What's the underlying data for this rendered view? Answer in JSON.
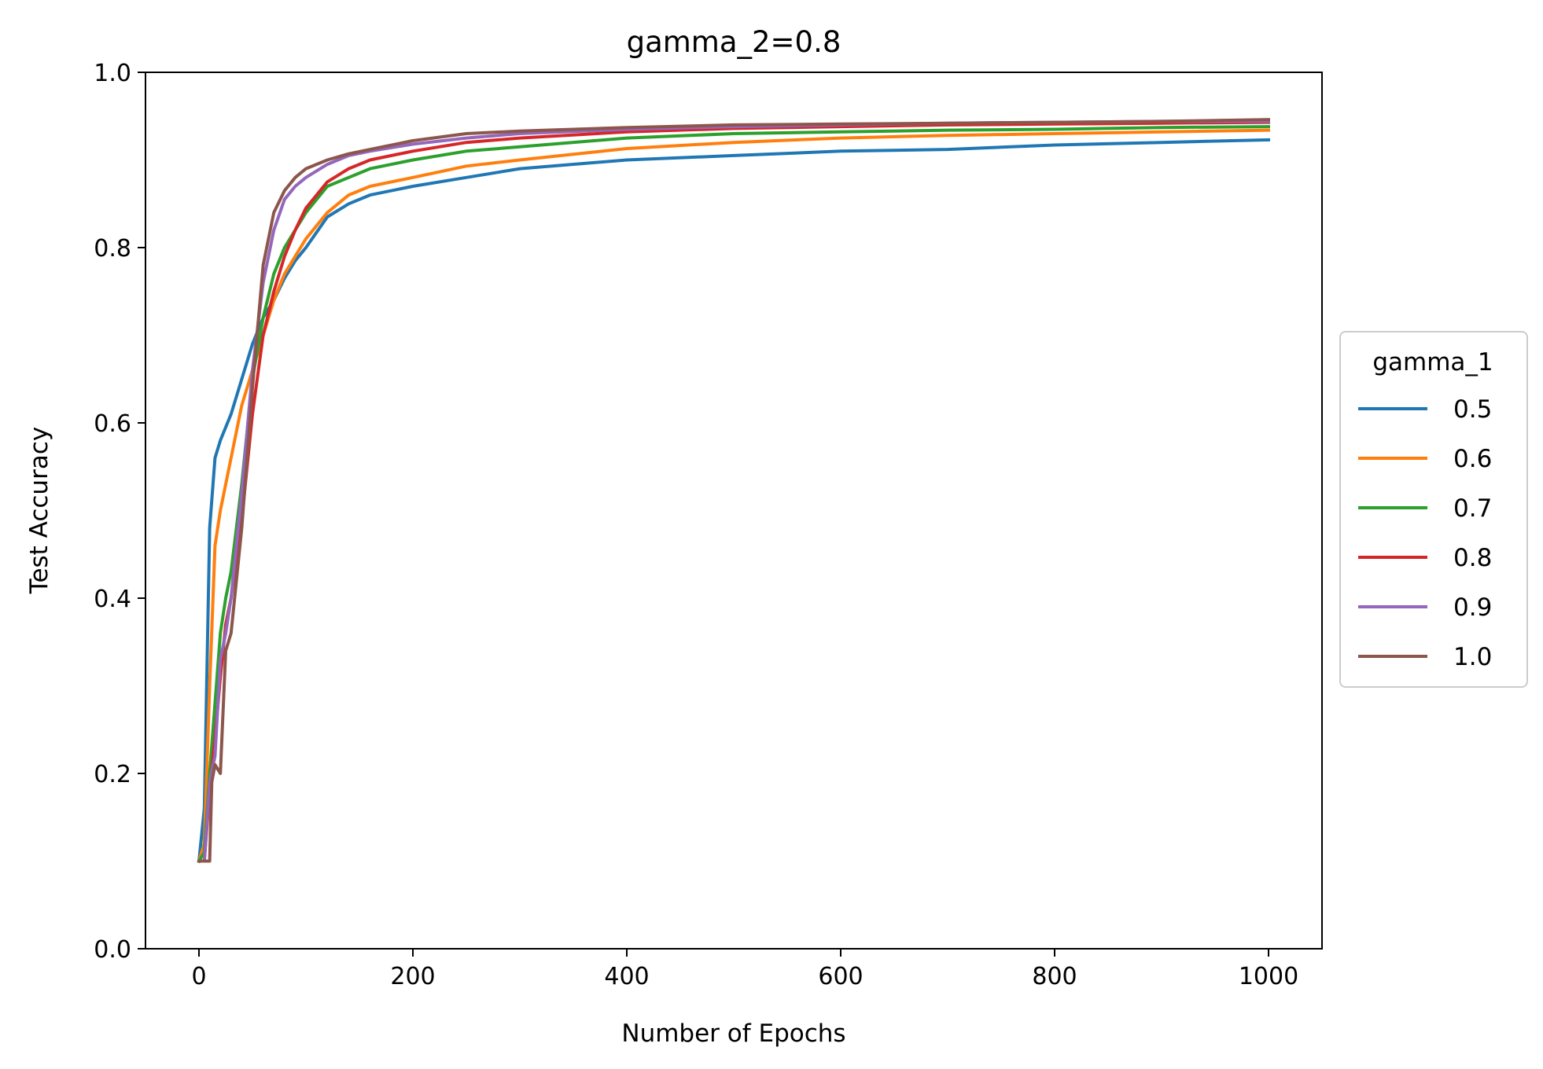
{
  "chart_data": {
    "type": "line",
    "title": "gamma_2=0.8",
    "xlabel": "Number of Epochs",
    "ylabel": "Test Accuracy",
    "xlim": [
      -50,
      1050
    ],
    "ylim": [
      0.0,
      1.0
    ],
    "xticks": [
      0,
      200,
      400,
      600,
      800,
      1000
    ],
    "xtick_labels": [
      "0",
      "200",
      "400",
      "600",
      "800",
      "1000"
    ],
    "yticks": [
      0.0,
      0.2,
      0.4,
      0.6,
      0.8,
      1.0
    ],
    "ytick_labels": [
      "0.0",
      "0.2",
      "0.4",
      "0.6",
      "0.8",
      "1.0"
    ],
    "grid": false,
    "legend": {
      "title": "gamma_1",
      "placement": "center-right outside"
    },
    "series": [
      {
        "name": "0.5",
        "color": "#1f77b4",
        "x": [
          0,
          5,
          10,
          15,
          20,
          30,
          40,
          50,
          60,
          70,
          80,
          90,
          100,
          120,
          140,
          160,
          200,
          250,
          300,
          400,
          500,
          600,
          700,
          800,
          900,
          1000
        ],
        "y": [
          0.1,
          0.16,
          0.48,
          0.56,
          0.58,
          0.61,
          0.65,
          0.69,
          0.72,
          0.74,
          0.765,
          0.785,
          0.8,
          0.835,
          0.85,
          0.86,
          0.87,
          0.88,
          0.89,
          0.9,
          0.905,
          0.91,
          0.912,
          0.917,
          0.92,
          0.923
        ]
      },
      {
        "name": "0.6",
        "color": "#ff7f0e",
        "x": [
          0,
          5,
          10,
          15,
          20,
          30,
          40,
          50,
          60,
          70,
          80,
          90,
          100,
          120,
          140,
          160,
          200,
          250,
          300,
          400,
          500,
          600,
          700,
          800,
          900,
          1000
        ],
        "y": [
          0.1,
          0.12,
          0.3,
          0.46,
          0.5,
          0.56,
          0.62,
          0.66,
          0.7,
          0.74,
          0.77,
          0.79,
          0.81,
          0.84,
          0.86,
          0.87,
          0.88,
          0.893,
          0.9,
          0.913,
          0.92,
          0.925,
          0.928,
          0.93,
          0.932,
          0.934
        ]
      },
      {
        "name": "0.7",
        "color": "#2ca02c",
        "x": [
          0,
          5,
          10,
          15,
          20,
          25,
          30,
          40,
          50,
          60,
          70,
          80,
          90,
          100,
          120,
          140,
          160,
          200,
          250,
          300,
          400,
          500,
          600,
          700,
          800,
          900,
          1000
        ],
        "y": [
          0.1,
          0.11,
          0.2,
          0.28,
          0.36,
          0.4,
          0.43,
          0.53,
          0.65,
          0.72,
          0.77,
          0.8,
          0.82,
          0.84,
          0.87,
          0.88,
          0.89,
          0.9,
          0.91,
          0.915,
          0.925,
          0.93,
          0.932,
          0.934,
          0.935,
          0.937,
          0.938
        ]
      },
      {
        "name": "0.8",
        "color": "#d62728",
        "x": [
          0,
          5,
          10,
          15,
          20,
          25,
          30,
          40,
          50,
          60,
          70,
          80,
          90,
          100,
          120,
          140,
          160,
          200,
          250,
          300,
          400,
          500,
          600,
          700,
          800,
          900,
          1000
        ],
        "y": [
          0.1,
          0.1,
          0.18,
          0.24,
          0.31,
          0.37,
          0.4,
          0.49,
          0.61,
          0.7,
          0.75,
          0.79,
          0.82,
          0.845,
          0.875,
          0.89,
          0.9,
          0.91,
          0.92,
          0.925,
          0.932,
          0.936,
          0.938,
          0.94,
          0.941,
          0.942,
          0.943
        ]
      },
      {
        "name": "0.9",
        "color": "#9467bd",
        "x": [
          0,
          5,
          10,
          15,
          20,
          25,
          30,
          40,
          50,
          60,
          70,
          80,
          90,
          100,
          120,
          140,
          160,
          200,
          250,
          300,
          400,
          500,
          600,
          700,
          800,
          900,
          1000
        ],
        "y": [
          0.1,
          0.1,
          0.19,
          0.22,
          0.33,
          0.36,
          0.4,
          0.52,
          0.66,
          0.76,
          0.82,
          0.855,
          0.87,
          0.88,
          0.895,
          0.905,
          0.91,
          0.918,
          0.925,
          0.93,
          0.935,
          0.938,
          0.94,
          0.942,
          0.943,
          0.944,
          0.944
        ]
      },
      {
        "name": "1.0",
        "color": "#8c564b",
        "x": [
          0,
          5,
          10,
          12,
          15,
          20,
          25,
          30,
          40,
          50,
          60,
          70,
          80,
          90,
          100,
          120,
          140,
          160,
          200,
          250,
          300,
          400,
          500,
          600,
          700,
          800,
          900,
          1000
        ],
        "y": [
          0.1,
          0.1,
          0.1,
          0.19,
          0.21,
          0.2,
          0.34,
          0.36,
          0.48,
          0.64,
          0.78,
          0.84,
          0.865,
          0.88,
          0.89,
          0.9,
          0.907,
          0.912,
          0.922,
          0.93,
          0.933,
          0.937,
          0.94,
          0.941,
          0.942,
          0.943,
          0.944,
          0.946
        ]
      }
    ]
  }
}
